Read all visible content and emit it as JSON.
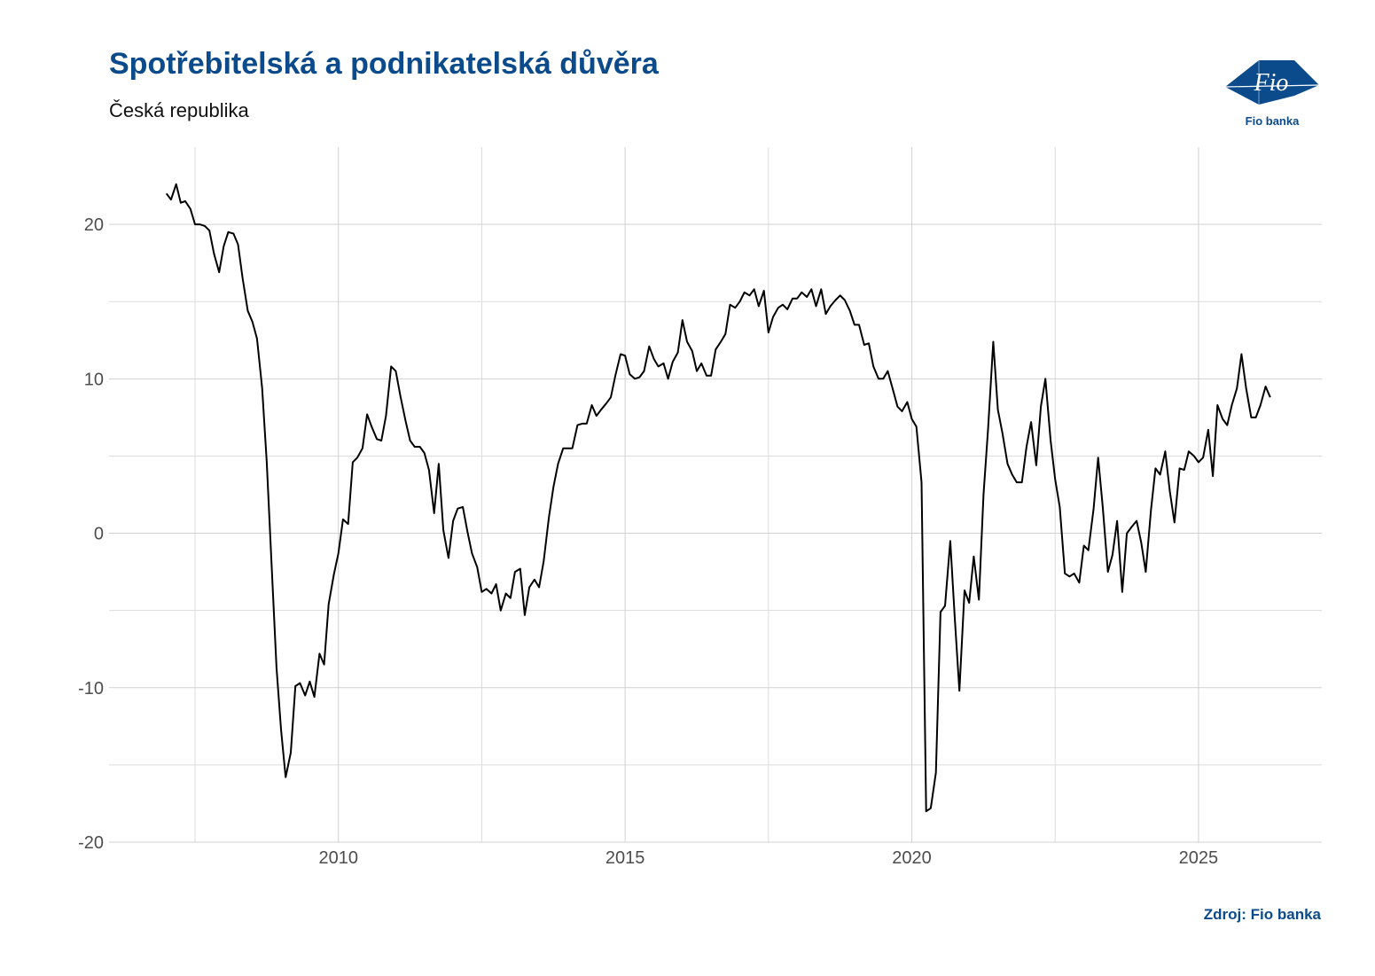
{
  "header": {
    "title": "Spotřebitelská a podnikatelská důvěra",
    "subtitle": "Česká republika"
  },
  "logo": {
    "mark": "Fio",
    "caption": "Fio banka"
  },
  "footer": {
    "source": "Zdroj: Fio banka"
  },
  "colors": {
    "brand": "#0b4a8b",
    "line": "#000000",
    "grid": "#d0d0d0"
  },
  "chart_data": {
    "type": "line",
    "title": "Spotřebitelská a podnikatelská důvěra",
    "subtitle": "Česká republika",
    "xlabel": "",
    "ylabel": "",
    "xlim": [
      2006.0,
      2027.15
    ],
    "ylim": [
      -20,
      25
    ],
    "x_ticks": [
      2010,
      2015,
      2020,
      2025
    ],
    "y_ticks": [
      -20,
      -10,
      0,
      10,
      20
    ],
    "grid": true,
    "legend": "none",
    "series": [
      {
        "color": "#000000",
        "x": [
          2007.0,
          2007.08,
          2007.17,
          2007.25,
          2007.33,
          2007.42,
          2007.5,
          2007.58,
          2007.67,
          2007.75,
          2007.83,
          2007.92,
          2008.0,
          2008.08,
          2008.17,
          2008.25,
          2008.33,
          2008.42,
          2008.5,
          2008.58,
          2008.67,
          2008.75,
          2008.83,
          2008.92,
          2009.0,
          2009.08,
          2009.17,
          2009.25,
          2009.33,
          2009.42,
          2009.5,
          2009.58,
          2009.67,
          2009.75,
          2009.83,
          2009.92,
          2010.0,
          2010.08,
          2010.17,
          2010.25,
          2010.33,
          2010.42,
          2010.5,
          2010.58,
          2010.67,
          2010.75,
          2010.83,
          2010.92,
          2011.0,
          2011.08,
          2011.17,
          2011.25,
          2011.33,
          2011.42,
          2011.5,
          2011.58,
          2011.67,
          2011.75,
          2011.83,
          2011.92,
          2012.0,
          2012.08,
          2012.17,
          2012.25,
          2012.33,
          2012.42,
          2012.5,
          2012.58,
          2012.67,
          2012.75,
          2012.83,
          2012.92,
          2013.0,
          2013.08,
          2013.17,
          2013.25,
          2013.33,
          2013.42,
          2013.5,
          2013.58,
          2013.67,
          2013.75,
          2013.83,
          2013.92,
          2014.0,
          2014.08,
          2014.17,
          2014.25,
          2014.33,
          2014.42,
          2014.5,
          2014.58,
          2014.67,
          2014.75,
          2014.83,
          2014.92,
          2015.0,
          2015.08,
          2015.17,
          2015.25,
          2015.33,
          2015.42,
          2015.5,
          2015.58,
          2015.67,
          2015.75,
          2015.83,
          2015.92,
          2016.0,
          2016.08,
          2016.17,
          2016.25,
          2016.33,
          2016.42,
          2016.5,
          2016.58,
          2016.67,
          2016.75,
          2016.83,
          2016.92,
          2017.0,
          2017.08,
          2017.17,
          2017.25,
          2017.33,
          2017.42,
          2017.5,
          2017.58,
          2017.67,
          2017.75,
          2017.83,
          2017.92,
          2018.0,
          2018.08,
          2018.17,
          2018.25,
          2018.33,
          2018.42,
          2018.5,
          2018.58,
          2018.67,
          2018.75,
          2018.83,
          2018.92,
          2019.0,
          2019.08,
          2019.17,
          2019.25,
          2019.33,
          2019.42,
          2019.5,
          2019.58,
          2019.67,
          2019.75,
          2019.83,
          2019.92,
          2020.0,
          2020.08,
          2020.17,
          2020.25,
          2020.33,
          2020.42,
          2020.5,
          2020.58,
          2020.67,
          2020.75,
          2020.83,
          2020.92,
          2021.0,
          2021.08,
          2021.17,
          2021.25,
          2021.33,
          2021.42,
          2021.5,
          2021.58,
          2021.67,
          2021.75,
          2021.83,
          2021.92,
          2022.0,
          2022.08,
          2022.17,
          2022.25,
          2022.33,
          2022.42,
          2022.5,
          2022.58,
          2022.67,
          2022.75,
          2022.83,
          2022.92,
          2023.0,
          2023.08,
          2023.17,
          2023.25,
          2023.33,
          2023.42,
          2023.5,
          2023.58,
          2023.67,
          2023.75,
          2023.83,
          2023.92,
          2024.0,
          2024.08,
          2024.17,
          2024.25,
          2024.33,
          2024.42,
          2024.5,
          2024.58,
          2024.67,
          2024.75,
          2024.83,
          2024.92,
          2025.0,
          2025.08,
          2025.17,
          2025.25,
          2025.33,
          2025.42,
          2025.5,
          2025.58,
          2025.67,
          2025.75,
          2025.83,
          2025.92,
          2026.0,
          2026.08,
          2026.17,
          2026.25
        ],
        "values": [
          22.0,
          21.6,
          22.6,
          21.4,
          21.5,
          21.0,
          20.0,
          20.0,
          19.9,
          19.6,
          18.1,
          16.9,
          18.6,
          19.5,
          19.4,
          18.7,
          16.5,
          14.4,
          13.7,
          12.6,
          9.4,
          4.6,
          -1.6,
          -8.7,
          -12.7,
          -15.8,
          -14.2,
          -9.9,
          -9.7,
          -10.5,
          -9.6,
          -10.6,
          -7.8,
          -8.5,
          -4.6,
          -2.7,
          -1.3,
          0.9,
          0.6,
          4.6,
          4.9,
          5.5,
          7.7,
          6.9,
          6.1,
          6.0,
          7.6,
          10.8,
          10.5,
          8.9,
          7.3,
          6.0,
          5.6,
          5.6,
          5.2,
          4.1,
          1.3,
          4.5,
          0.2,
          -1.6,
          0.8,
          1.6,
          1.7,
          0.1,
          -1.3,
          -2.2,
          -3.8,
          -3.6,
          -3.9,
          -3.3,
          -5.0,
          -3.9,
          -4.2,
          -2.5,
          -2.3,
          -5.3,
          -3.5,
          -3.0,
          -3.5,
          -1.8,
          1.0,
          3.0,
          4.5,
          5.5,
          5.5,
          5.5,
          7.0,
          7.1,
          7.1,
          8.3,
          7.6,
          8.0,
          8.4,
          8.8,
          10.2,
          11.6,
          11.5,
          10.3,
          10.0,
          10.1,
          10.5,
          12.1,
          11.3,
          10.8,
          11.0,
          10.0,
          11.1,
          11.7,
          13.8,
          12.4,
          11.8,
          10.5,
          11.0,
          10.2,
          10.2,
          11.9,
          12.4,
          12.9,
          14.8,
          14.6,
          15.0,
          15.6,
          15.4,
          15.8,
          14.7,
          15.7,
          13.0,
          14.0,
          14.6,
          14.8,
          14.5,
          15.2,
          15.2,
          15.6,
          15.3,
          15.8,
          14.7,
          15.8,
          14.2,
          14.7,
          15.1,
          15.4,
          15.1,
          14.4,
          13.5,
          13.5,
          12.2,
          12.3,
          10.8,
          10.0,
          10.0,
          10.5,
          9.3,
          8.2,
          7.9,
          8.5,
          7.4,
          6.9,
          3.3,
          -18.0,
          -17.8,
          -15.5,
          -5.1,
          -4.7,
          -0.5,
          -5.5,
          -10.2,
          -3.7,
          -4.5,
          -1.5,
          -4.3,
          2.5,
          6.8,
          12.4,
          8.0,
          6.5,
          4.5,
          3.8,
          3.3,
          3.3,
          5.6,
          7.2,
          4.4,
          8.2,
          10.0,
          6.0,
          3.5,
          1.7,
          -2.6,
          -2.8,
          -2.6,
          -3.2,
          -0.8,
          -1.1,
          1.6,
          4.9,
          1.7,
          -2.5,
          -1.4,
          0.8,
          -3.8,
          0.0,
          0.4,
          0.8,
          -0.6,
          -2.5,
          1.5,
          4.2,
          3.8,
          5.3,
          2.7,
          0.7,
          4.2,
          4.1,
          5.3,
          5.0,
          4.6,
          4.9,
          6.7,
          3.7,
          8.3,
          7.4,
          7.0,
          8.3,
          9.4,
          11.6,
          9.4,
          7.5,
          7.5,
          8.3,
          9.5,
          8.8
        ]
      }
    ]
  }
}
